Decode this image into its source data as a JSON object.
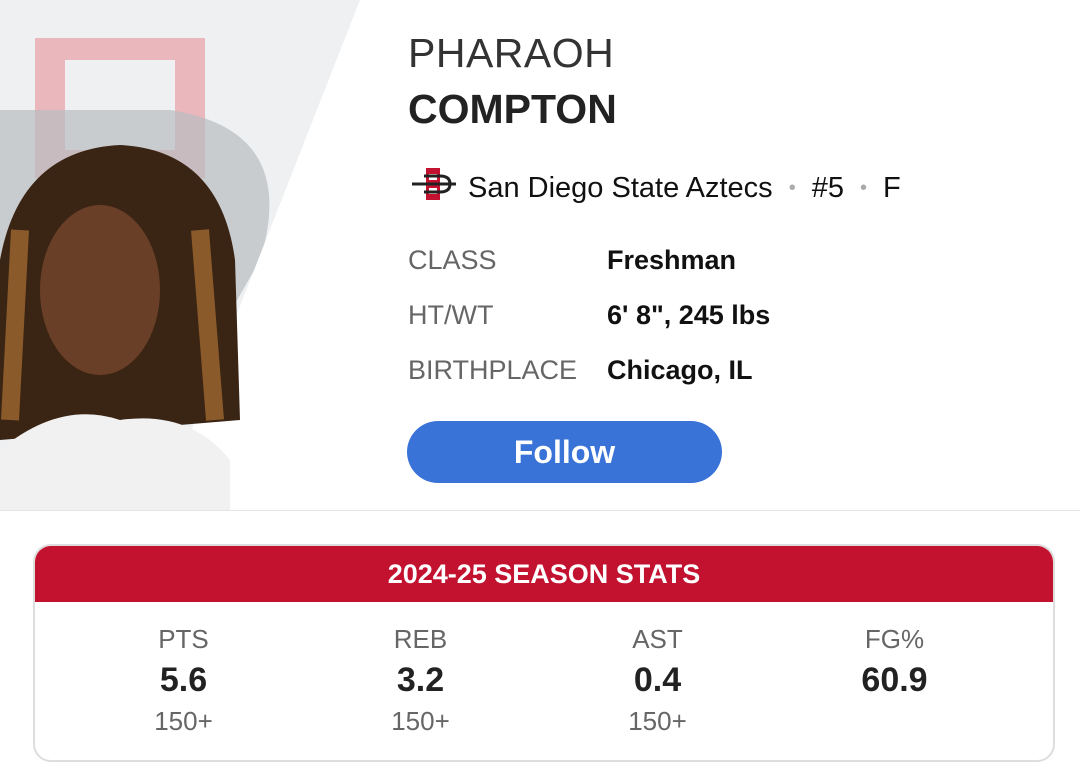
{
  "player": {
    "first_name": "PHARAOH",
    "last_name": "COMPTON",
    "team": "San Diego State Aztecs",
    "number": "#5",
    "position": "F",
    "separator": "•"
  },
  "details": [
    {
      "label": "CLASS",
      "value": "Freshman"
    },
    {
      "label": "HT/WT",
      "value": "6' 8\", 245 lbs"
    },
    {
      "label": "BIRTHPLACE",
      "value": "Chicago, IL"
    }
  ],
  "follow_label": "Follow",
  "season_stats": {
    "title": "2024-25 SEASON STATS",
    "items": [
      {
        "label": "PTS",
        "value": "5.6",
        "rank": "150+"
      },
      {
        "label": "REB",
        "value": "3.2",
        "rank": "150+"
      },
      {
        "label": "AST",
        "value": "0.4",
        "rank": "150+"
      },
      {
        "label": "FG%",
        "value": "60.9",
        "rank": ""
      }
    ]
  },
  "colors": {
    "accent": "#c2122f",
    "follow": "#3a73d8"
  },
  "icons": {
    "team_logo": "sdsu-logo"
  }
}
